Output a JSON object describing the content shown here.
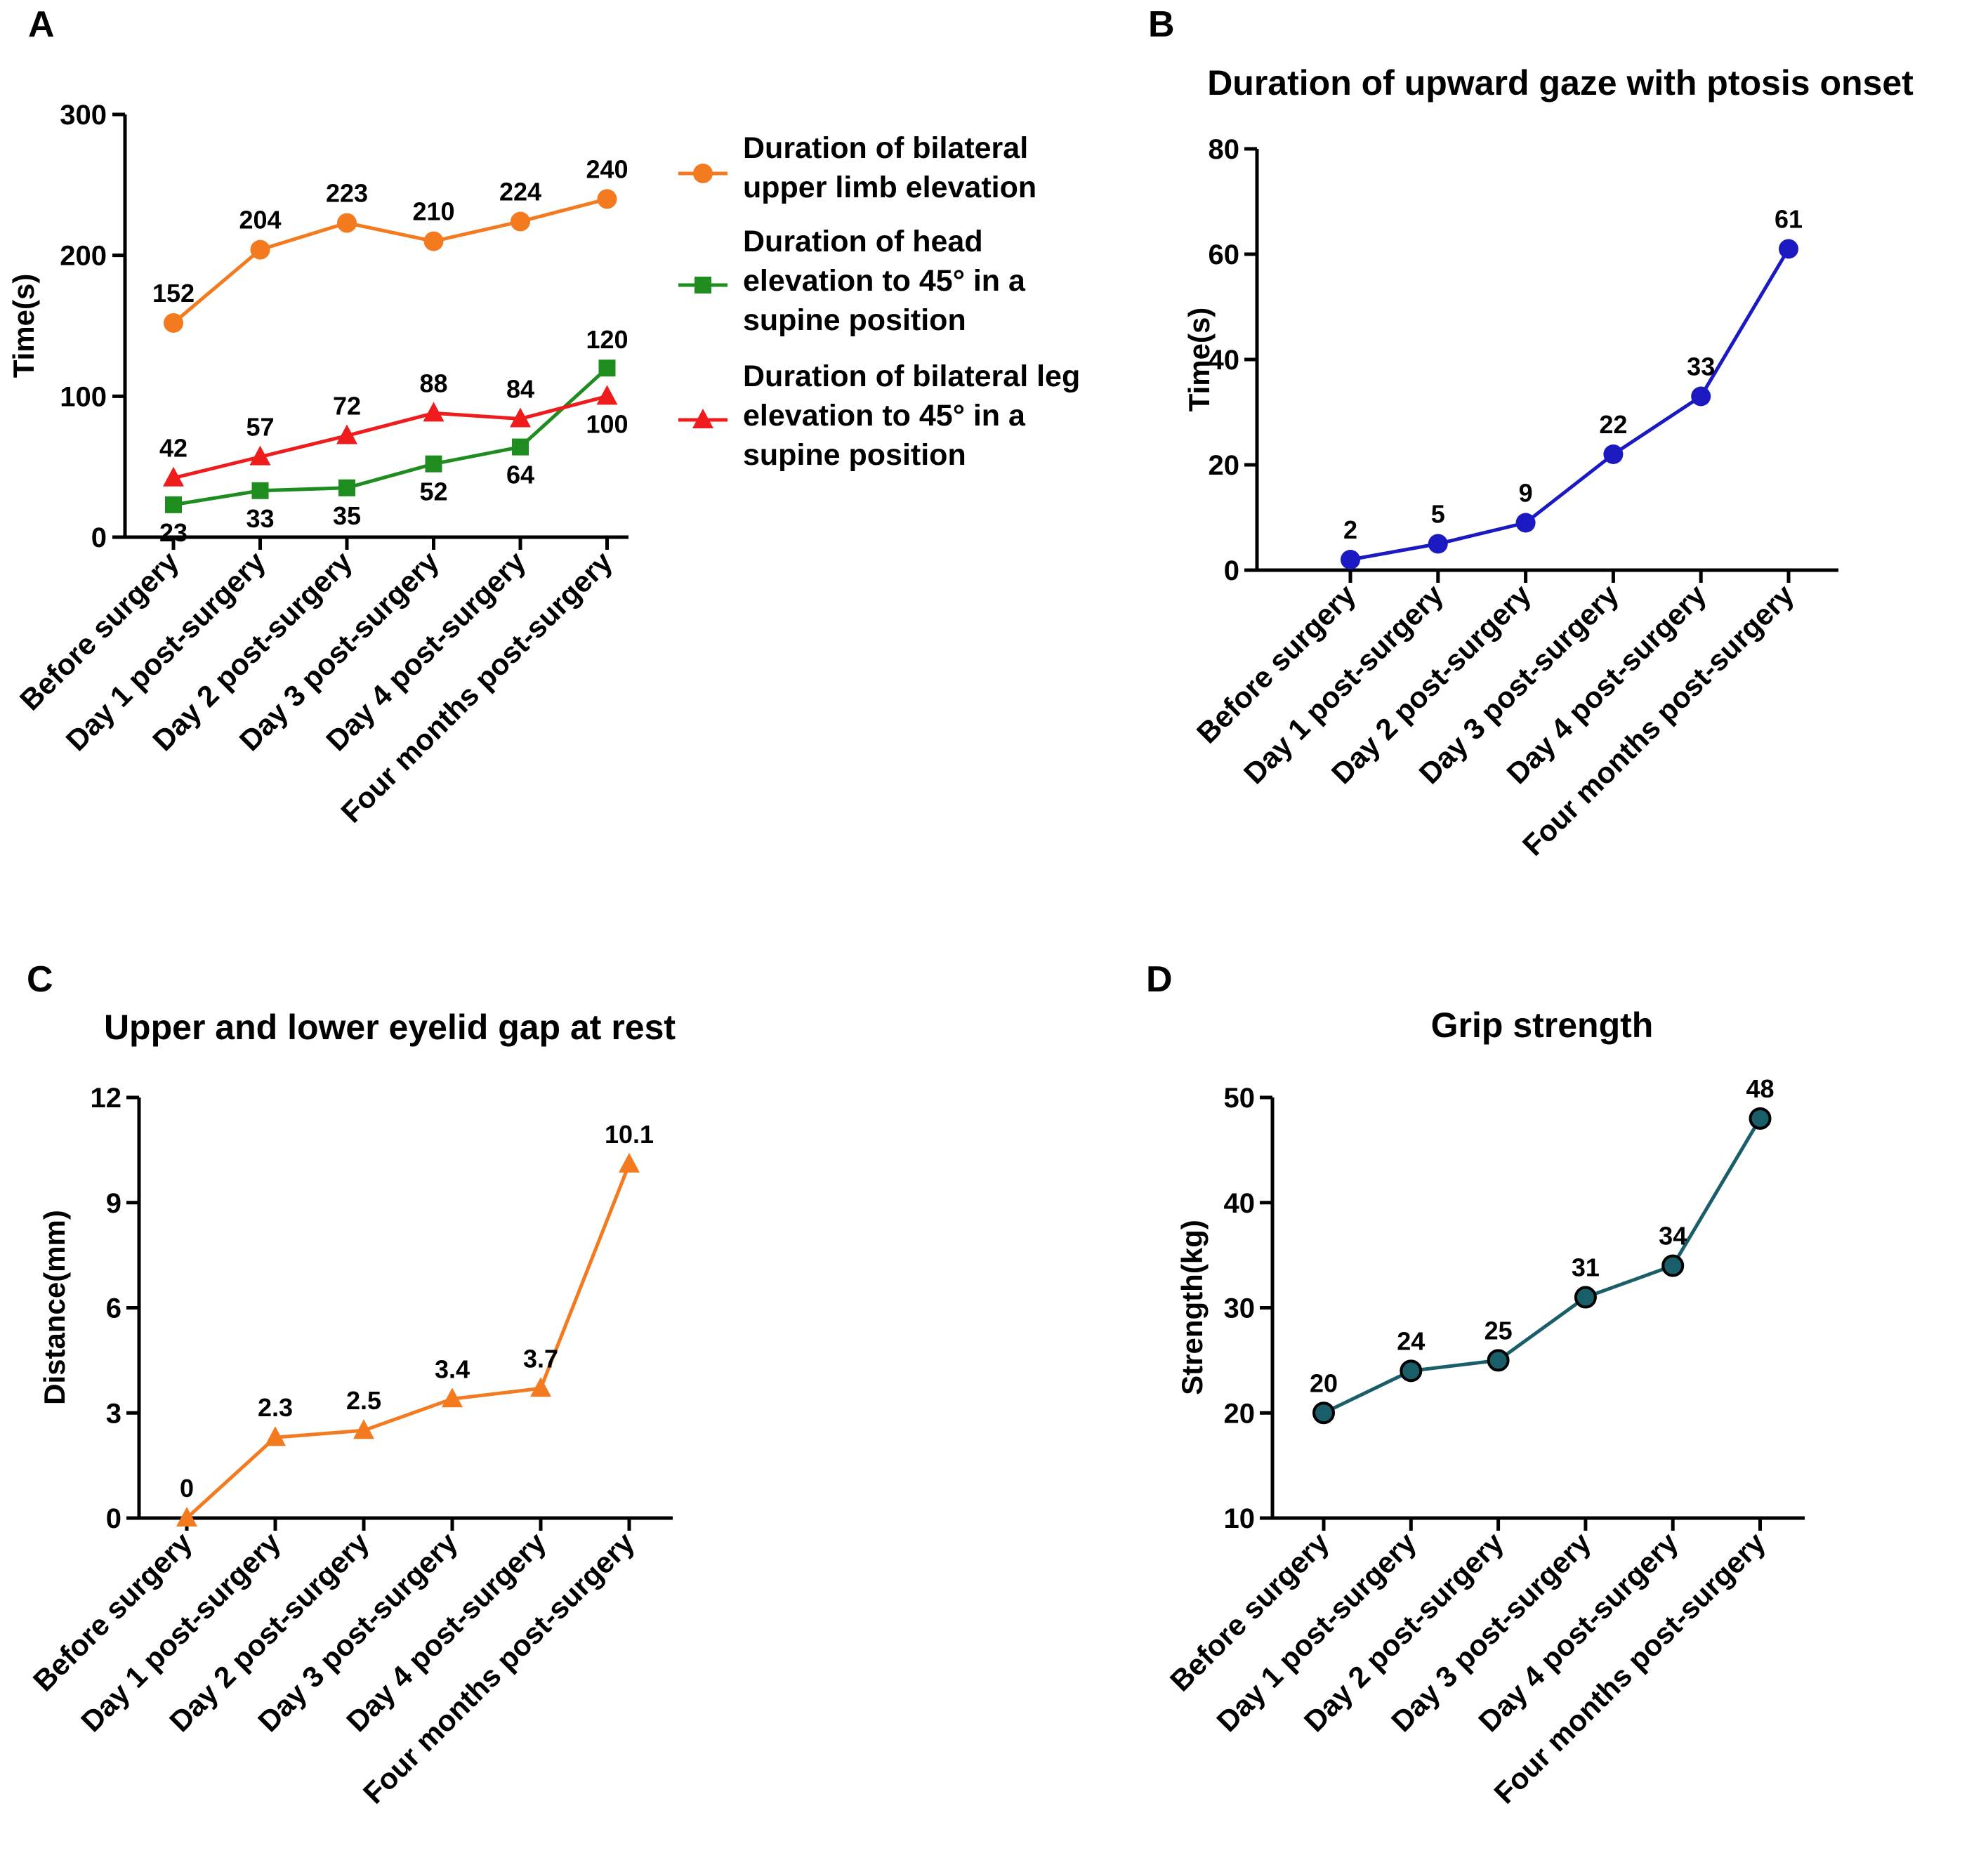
{
  "figure": {
    "panels": [
      "A",
      "B",
      "C",
      "D"
    ]
  },
  "chart_data": [
    {
      "panel": "A",
      "type": "line",
      "title": "",
      "xlabel": "",
      "ylabel": "Time(s)",
      "ylim": [
        0,
        300
      ],
      "yticks": [
        0,
        100,
        200,
        300
      ],
      "categories": [
        "Before surgery",
        "Day 1 post-surgery",
        "Day 2 post-surgery",
        "Day 3 post-surgery",
        "Day 4 post-surgery",
        "Four months post-surgery"
      ],
      "legend_position": "right",
      "series": [
        {
          "name": "Duration of bilateral upper limb elevation",
          "legend_lines": [
            "Duration of bilateral",
            "upper limb elevation"
          ],
          "marker": "circle",
          "color": "#F47A20",
          "label_position": "above",
          "values": [
            152,
            204,
            223,
            210,
            224,
            240
          ]
        },
        {
          "name": "Duration of head elevation to 45° in a supine position",
          "legend_lines": [
            "Duration of head",
            "elevation to 45° in a",
            "supine position"
          ],
          "marker": "square",
          "color": "#1E8C1E",
          "label_position": "below",
          "values": [
            23,
            33,
            35,
            52,
            64,
            120
          ]
        },
        {
          "name": "Duration of bilateral leg elevation to 45° in a supine position",
          "legend_lines": [
            "Duration of bilateral leg",
            "elevation to 45° in a",
            "supine position"
          ],
          "marker": "triangle",
          "color": "#EE1C1C",
          "label_position": "above",
          "values": [
            42,
            57,
            72,
            88,
            84,
            100
          ]
        }
      ]
    },
    {
      "panel": "B",
      "type": "line",
      "title": "Duration of upward gaze with ptosis onset",
      "xlabel": "",
      "ylabel": "Time(s)",
      "ylim": [
        0,
        80
      ],
      "yticks": [
        0,
        20,
        40,
        60,
        80
      ],
      "categories": [
        "Before surgery",
        "Day 1 post-surgery",
        "Day 2 post-surgery",
        "Day 3 post-surgery",
        "Day 4 post-surgery",
        "Four months post-surgery"
      ],
      "series": [
        {
          "name": "Duration of upward gaze with ptosis onset",
          "marker": "circle",
          "color": "#1A1AC0",
          "values": [
            2,
            5,
            9,
            22,
            33,
            61
          ]
        }
      ]
    },
    {
      "panel": "C",
      "type": "line",
      "title": "Upper and lower eyelid gap at rest",
      "xlabel": "",
      "ylabel": "Distance(mm)",
      "ylim": [
        0,
        12
      ],
      "yticks": [
        0,
        3,
        6,
        9,
        12
      ],
      "categories": [
        "Before surgery",
        "Day 1 post-surgery",
        "Day 2 post-surgery",
        "Day 3 post-surgery",
        "Day 4 post-surgery",
        "Four months post-surgery"
      ],
      "series": [
        {
          "name": "Upper and lower eyelid gap at rest",
          "marker": "triangle",
          "color": "#F47A20",
          "values": [
            0,
            2.3,
            2.5,
            3.4,
            3.7,
            10.1
          ]
        }
      ]
    },
    {
      "panel": "D",
      "type": "line",
      "title": "Grip strength",
      "xlabel": "",
      "ylabel": "Strength(kg)",
      "ylim": [
        10,
        50
      ],
      "yticks": [
        10,
        20,
        30,
        40,
        50
      ],
      "categories": [
        "Before surgery",
        "Day 1 post-surgery",
        "Day 2 post-surgery",
        "Day 3 post-surgery",
        "Day 4 post-surgery",
        "Four months post-surgery"
      ],
      "series": [
        {
          "name": "Grip strength",
          "marker": "circle-dark",
          "color": "#1A5E6A",
          "values": [
            20,
            24,
            25,
            31,
            34,
            48
          ]
        }
      ]
    }
  ]
}
